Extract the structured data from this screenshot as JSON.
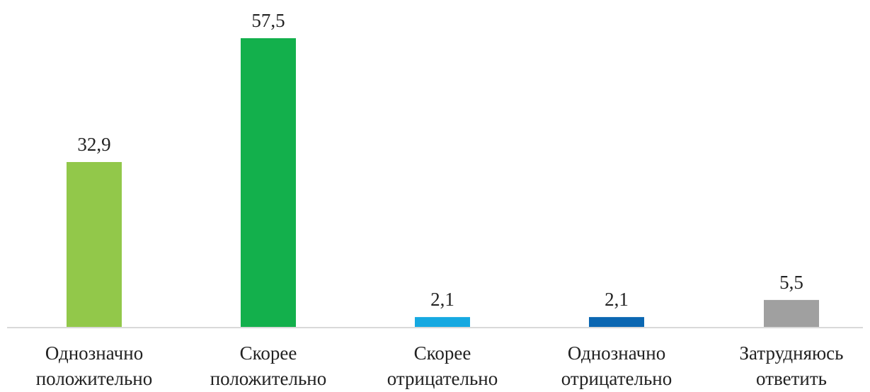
{
  "chart_data": {
    "type": "bar",
    "categories": [
      [
        "Однозначно",
        "положительно"
      ],
      [
        "Скорее",
        "положительно"
      ],
      [
        "Скорее",
        "отрицательно"
      ],
      [
        "Однозначно",
        "отрицательно"
      ],
      [
        "Затрудняюсь",
        "ответить"
      ]
    ],
    "values": [
      32.9,
      57.5,
      2.1,
      2.1,
      5.5
    ],
    "value_labels": [
      "32,9",
      "57,5",
      "2,1",
      "2,1",
      "5,5"
    ],
    "colors": [
      "#92c84a",
      "#13b04c",
      "#16a9e1",
      "#0b67b2",
      "#a0a0a0"
    ],
    "axis_color": "#d9d9d9",
    "ylim": [
      0,
      60
    ],
    "grid": false,
    "legend": "none"
  }
}
